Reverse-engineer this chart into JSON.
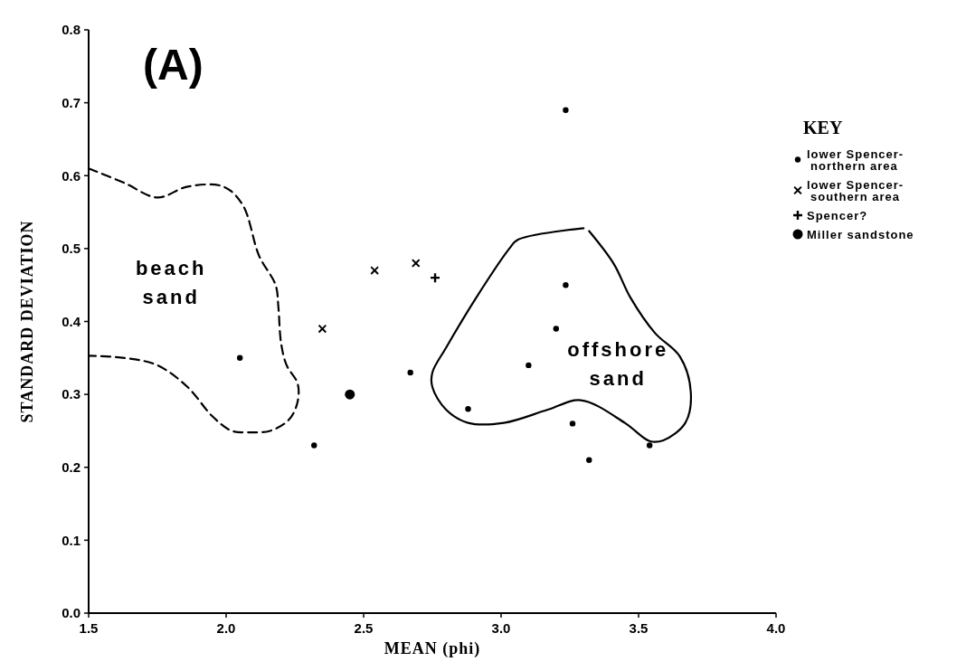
{
  "chart_data": {
    "type": "scatter",
    "title": "(A)",
    "xlabel": "MEAN (phi)",
    "ylabel": "STANDARD DEVIATION",
    "legend_title": "KEY",
    "legend": "top right",
    "xlim": [
      1.5,
      4.0
    ],
    "ylim": [
      0.0,
      0.8
    ],
    "xticks": [
      1.5,
      {
        "value": 2,
        "label": "2.0"
      },
      2.5,
      {
        "value": 3,
        "label": "3.0"
      },
      3.5,
      {
        "value": 4,
        "label": "4.0"
      }
    ],
    "yticks": [
      {
        "value": 0,
        "label": "0.0"
      },
      0.1,
      0.2,
      0.3,
      0.4,
      0.5,
      0.6,
      0.7,
      0.8
    ],
    "grid": false,
    "annotations": [
      "beach\nsand",
      "offshore\nsand"
    ],
    "series": [
      {
        "name": "lower Spencer-\nnorthern area",
        "color": "#000000",
        "marker": "circle",
        "x": [
          2.05,
          2.32,
          2.67,
          3.235,
          3.235,
          3.2,
          3.1,
          2.88,
          3.26,
          3.32,
          3.54
        ],
        "values": [
          0.35,
          0.23,
          0.33,
          0.69,
          0.45,
          0.39,
          0.34,
          0.28,
          0.26,
          0.21,
          0.23
        ]
      },
      {
        "name": "lower Spencer-\nsouthern area",
        "color": "#000000",
        "marker": "cross",
        "x": [
          2.35,
          2.54,
          2.69
        ],
        "values": [
          0.39,
          0.47,
          0.48
        ]
      },
      {
        "name": "Spencer?",
        "color": "#000000",
        "marker": "plus",
        "x": [
          2.76
        ],
        "values": [
          0.46
        ]
      },
      {
        "name": "Miller sandstone",
        "color": "#000000",
        "marker": "circle",
        "x": [
          2.45
        ],
        "values": [
          0.3
        ]
      },
      {
        "type": "line",
        "color": "#000000",
        "line_style": "dashed",
        "marker": "none",
        "x": [
          1.5,
          1.63,
          1.75,
          1.86,
          1.99,
          2.06,
          2.12,
          2.18,
          2.19,
          2.2,
          2.22,
          2.26,
          2.26,
          2.23,
          2.16,
          2.08,
          2.02,
          1.95,
          1.86,
          1.75,
          1.63,
          1.5
        ],
        "values": [
          0.61,
          0.59,
          0.57,
          0.585,
          0.585,
          0.56,
          0.49,
          0.45,
          0.42,
          0.37,
          0.34,
          0.315,
          0.29,
          0.266,
          0.25,
          0.248,
          0.25,
          0.27,
          0.31,
          0.34,
          0.35,
          0.353
        ]
      },
      {
        "type": "line",
        "color": "#000000",
        "line_style": "solid",
        "marker": "none",
        "x": [
          3.3,
          3.06,
          3.03,
          2.905,
          2.8,
          2.75,
          2.75,
          2.8,
          2.88,
          3.01,
          3.17,
          3.29,
          3.45,
          3.54,
          3.59,
          3.67,
          3.69,
          3.65,
          3.56,
          3.47,
          3.41,
          3.32
        ],
        "values": [
          0.528,
          0.512,
          0.5,
          0.43,
          0.364,
          0.33,
          0.31,
          0.279,
          0.261,
          0.261,
          0.279,
          0.292,
          0.261,
          0.236,
          0.237,
          0.261,
          0.303,
          0.352,
          0.384,
          0.433,
          0.479,
          0.524
        ]
      }
    ]
  }
}
